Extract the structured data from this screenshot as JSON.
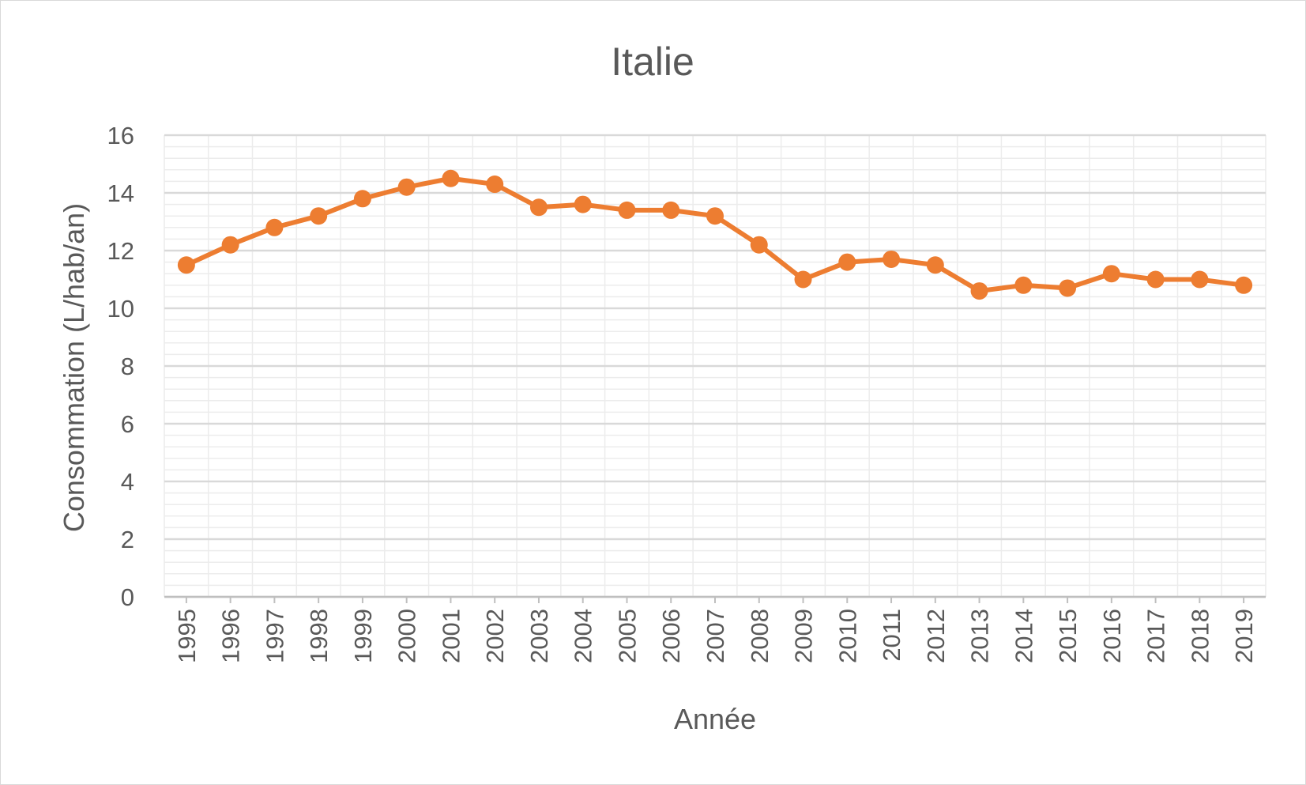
{
  "chart_data": {
    "type": "line",
    "title": "Italie",
    "xlabel": "Année",
    "ylabel": "Consommation (L/hab/an)",
    "ylim": [
      0,
      16
    ],
    "y_ticks": [
      0,
      2,
      4,
      6,
      8,
      10,
      12,
      14,
      16
    ],
    "grid": true,
    "categories": [
      "1995",
      "1996",
      "1997",
      "1998",
      "1999",
      "2000",
      "2001",
      "2002",
      "2003",
      "2004",
      "2005",
      "2006",
      "2007",
      "2008",
      "2009",
      "2010",
      "2011",
      "2012",
      "2013",
      "2014",
      "2015",
      "2016",
      "2017",
      "2018",
      "2019"
    ],
    "series": [
      {
        "color": "#ED7D31",
        "values": [
          11.5,
          12.2,
          12.8,
          13.2,
          13.8,
          14.2,
          14.5,
          14.3,
          13.5,
          13.6,
          13.4,
          13.4,
          13.2,
          12.2,
          11.0,
          11.6,
          11.7,
          11.5,
          10.6,
          10.8,
          10.7,
          11.2,
          11.0,
          11.0,
          10.8
        ]
      }
    ]
  },
  "colors": {
    "line": "#ED7D31",
    "text": "#595959",
    "major_grid": "#d9d9d9",
    "minor_grid": "#ececec",
    "axis": "#bfbfbf"
  }
}
